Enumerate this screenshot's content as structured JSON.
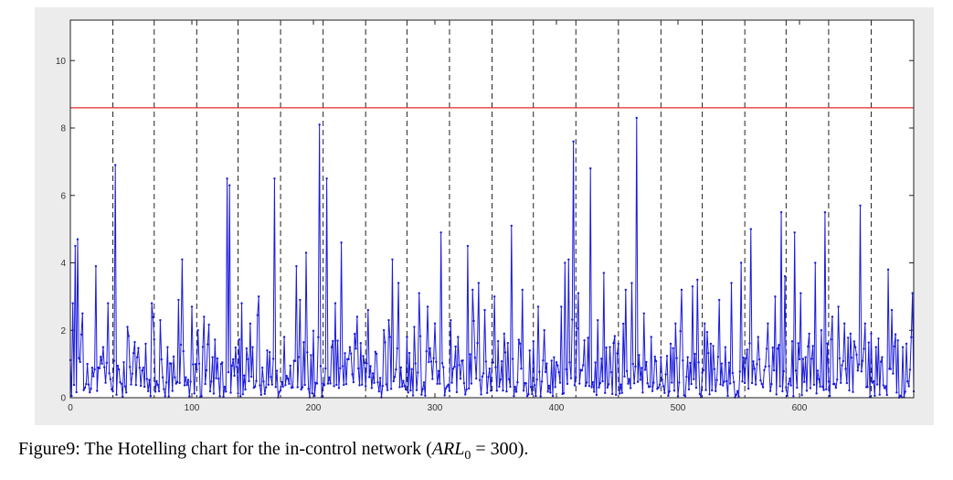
{
  "chart_data": {
    "type": "line",
    "title": "",
    "xlabel": "",
    "ylabel": "",
    "xlim": [
      0,
      694
    ],
    "ylim": [
      0,
      11.2
    ],
    "xticks": [
      0,
      100,
      200,
      300,
      400,
      500,
      600
    ],
    "yticks": [
      0,
      2,
      4,
      6,
      8,
      10
    ],
    "grid": false,
    "legend": "none",
    "control_limit": 8.6,
    "segment_boundaries": [
      35,
      69,
      104,
      138,
      173,
      208,
      243,
      277,
      312,
      347,
      381,
      416,
      451,
      486,
      520,
      555,
      589,
      624,
      659
    ],
    "series": [
      {
        "color": "#1a1adc",
        "peaks": [
          [
            2,
            2.8
          ],
          [
            4,
            4.5
          ],
          [
            6,
            4.7
          ],
          [
            10,
            2.5
          ],
          [
            14,
            1.0
          ],
          [
            21,
            3.9
          ],
          [
            27,
            1.5
          ],
          [
            31,
            2.8
          ],
          [
            37,
            6.9
          ],
          [
            47,
            2.1
          ],
          [
            55,
            1.2
          ],
          [
            62,
            1.6
          ],
          [
            67,
            2.8
          ],
          [
            74,
            2.3
          ],
          [
            80,
            1.5
          ],
          [
            89,
            2.9
          ],
          [
            92,
            4.1
          ],
          [
            100,
            2.7
          ],
          [
            105,
            2.0
          ],
          [
            110,
            2.4
          ],
          [
            117,
            1.2
          ],
          [
            124,
            1.0
          ],
          [
            129,
            6.5
          ],
          [
            131,
            6.3
          ],
          [
            141,
            2.8
          ],
          [
            150,
            1.5
          ],
          [
            155,
            3.0
          ],
          [
            162,
            1.4
          ],
          [
            168,
            6.5
          ],
          [
            176,
            1.8
          ],
          [
            186,
            3.9
          ],
          [
            189,
            2.9
          ],
          [
            194,
            4.3
          ],
          [
            205,
            8.1
          ],
          [
            211,
            6.5
          ],
          [
            218,
            2.8
          ],
          [
            223,
            4.6
          ],
          [
            230,
            1.5
          ],
          [
            236,
            2.4
          ],
          [
            245,
            2.6
          ],
          [
            252,
            1.3
          ],
          [
            258,
            2.0
          ],
          [
            262,
            2.3
          ],
          [
            265,
            4.1
          ],
          [
            270,
            3.4
          ],
          [
            277,
            1.8
          ],
          [
            283,
            2.1
          ],
          [
            287,
            3.1
          ],
          [
            294,
            2.7
          ],
          [
            300,
            2.2
          ],
          [
            305,
            4.9
          ],
          [
            313,
            2.3
          ],
          [
            319,
            1.8
          ],
          [
            327,
            4.5
          ],
          [
            331,
            3.2
          ],
          [
            336,
            3.4
          ],
          [
            341,
            2.6
          ],
          [
            349,
            3.0
          ],
          [
            357,
            1.9
          ],
          [
            363,
            5.1
          ],
          [
            372,
            3.2
          ],
          [
            378,
            1.4
          ],
          [
            385,
            2.7
          ],
          [
            390,
            2.0
          ],
          [
            396,
            1.1
          ],
          [
            404,
            2.7
          ],
          [
            407,
            4.0
          ],
          [
            410,
            4.1
          ],
          [
            414,
            7.6
          ],
          [
            418,
            3.1
          ],
          [
            423,
            1.7
          ],
          [
            428,
            6.8
          ],
          [
            434,
            2.3
          ],
          [
            439,
            3.7
          ],
          [
            444,
            1.5
          ],
          [
            451,
            1.6
          ],
          [
            457,
            3.2
          ],
          [
            462,
            3.4
          ],
          [
            466,
            8.3
          ],
          [
            472,
            2.5
          ],
          [
            478,
            1.8
          ],
          [
            486,
            1.2
          ],
          [
            494,
            1.6
          ],
          [
            498,
            2.2
          ],
          [
            503,
            3.2
          ],
          [
            508,
            1.2
          ],
          [
            512,
            3.3
          ],
          [
            516,
            3.5
          ],
          [
            522,
            2.2
          ],
          [
            527,
            1.6
          ],
          [
            534,
            2.9
          ],
          [
            539,
            1.5
          ],
          [
            544,
            3.4
          ],
          [
            552,
            4.0
          ],
          [
            560,
            5.0
          ],
          [
            566,
            1.8
          ],
          [
            574,
            2.2
          ],
          [
            580,
            3.0
          ],
          [
            585,
            5.5
          ],
          [
            588,
            3.6
          ],
          [
            596,
            4.9
          ],
          [
            601,
            3.1
          ],
          [
            608,
            1.9
          ],
          [
            613,
            4.0
          ],
          [
            618,
            2.0
          ],
          [
            621,
            5.5
          ],
          [
            627,
            2.4
          ],
          [
            632,
            2.7
          ],
          [
            637,
            2.2
          ],
          [
            642,
            1.9
          ],
          [
            646,
            1.5
          ],
          [
            650,
            5.7
          ],
          [
            654,
            2.2
          ],
          [
            659,
            1.9
          ],
          [
            663,
            1.5
          ],
          [
            668,
            1.2
          ],
          [
            673,
            3.8
          ],
          [
            676,
            2.6
          ],
          [
            681,
            1.7
          ],
          [
            685,
            1.5
          ],
          [
            688,
            1.6
          ],
          [
            693,
            3.1
          ]
        ]
      }
    ]
  },
  "caption": {
    "prefix": "Figure9: The Hotelling chart for the in-control network (",
    "arl_text": "ARL",
    "arl_subscript": "0",
    "equals": " = 300",
    "suffix": ")."
  }
}
